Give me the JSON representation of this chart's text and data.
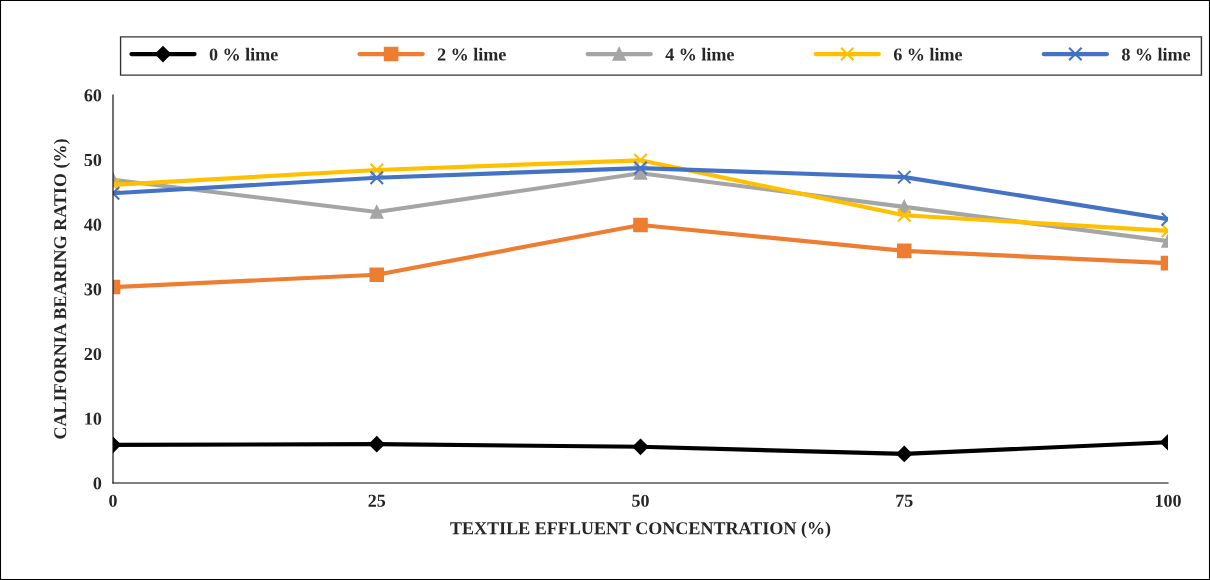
{
  "chart_data": {
    "type": "line",
    "xlabel": "TEXTILE EFFLUENT CONCENTRATION (%)",
    "ylabel": "CALIFORNIA BEARING RATIO (%)",
    "x": [
      0,
      25,
      50,
      75,
      100
    ],
    "xlim": [
      0,
      100
    ],
    "xticks": [
      0,
      25,
      50,
      75,
      100
    ],
    "ylim": [
      0,
      60
    ],
    "yticks": [
      0,
      10,
      20,
      30,
      40,
      50,
      60
    ],
    "grid": false,
    "legend": "top",
    "series": [
      {
        "name": "0 % lime",
        "color": "#000000",
        "marker": "diamond",
        "values": [
          5.9,
          6.0,
          5.6,
          4.5,
          6.3
        ]
      },
      {
        "name": "2 % lime",
        "color": "#ed7d31",
        "marker": "square",
        "values": [
          30.3,
          32.2,
          39.9,
          35.9,
          34.0
        ]
      },
      {
        "name": "4 % lime",
        "color": "#a5a5a5",
        "marker": "triangle",
        "values": [
          46.9,
          41.9,
          47.9,
          42.7,
          37.4
        ]
      },
      {
        "name": "6 % lime",
        "color": "#ffc000",
        "marker": "cross",
        "values": [
          46.1,
          48.4,
          49.9,
          41.4,
          39.0
        ]
      },
      {
        "name": "8 % lime",
        "color": "#4472c4",
        "marker": "cross",
        "values": [
          44.8,
          47.2,
          48.7,
          47.3,
          40.8
        ]
      }
    ]
  }
}
